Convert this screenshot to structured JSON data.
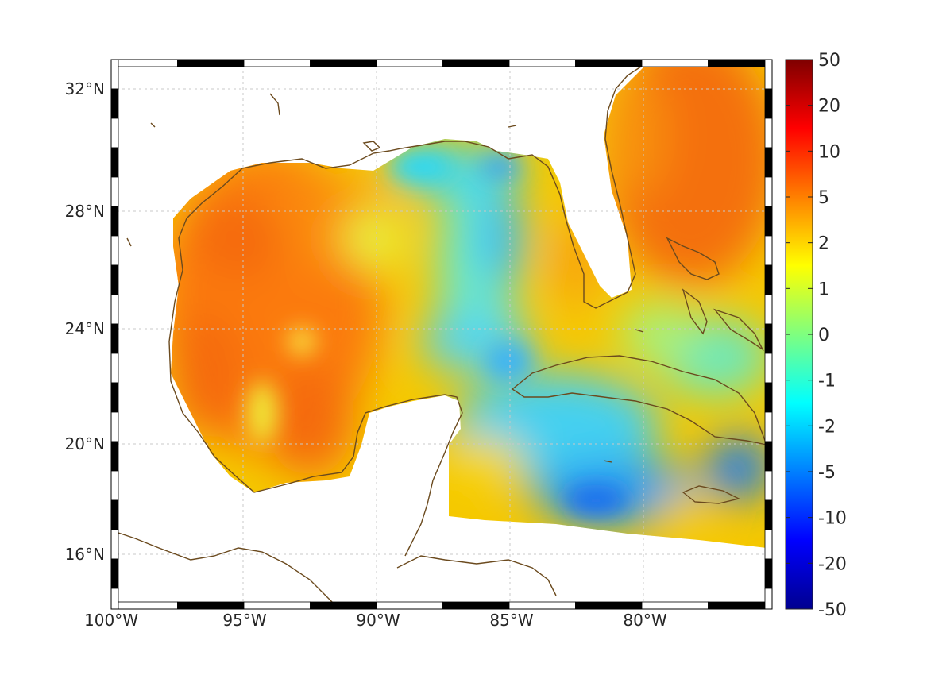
{
  "map": {
    "lat_ticks": [
      "32°N",
      "28°N",
      "24°N",
      "20°N",
      "16°N"
    ],
    "lon_ticks": [
      "100°W",
      "95°W",
      "90°W",
      "85°W",
      "80°W"
    ],
    "lon_range": [
      -100,
      -75.5
    ],
    "lat_range": [
      14.3,
      33
    ],
    "grid": true,
    "frame": "black-and-white checkered border"
  },
  "colorbar": {
    "labels": [
      "50",
      "20",
      "10",
      "5",
      "2",
      "1",
      "0",
      "-1",
      "-2",
      "-5",
      "-10",
      "-20",
      "-50"
    ],
    "colormap": "jet",
    "range": [
      -50,
      50
    ]
  },
  "colors": {
    "coastline": "#6b4a1e",
    "land": "#ffffff",
    "gridline": "#c8c8c8"
  }
}
